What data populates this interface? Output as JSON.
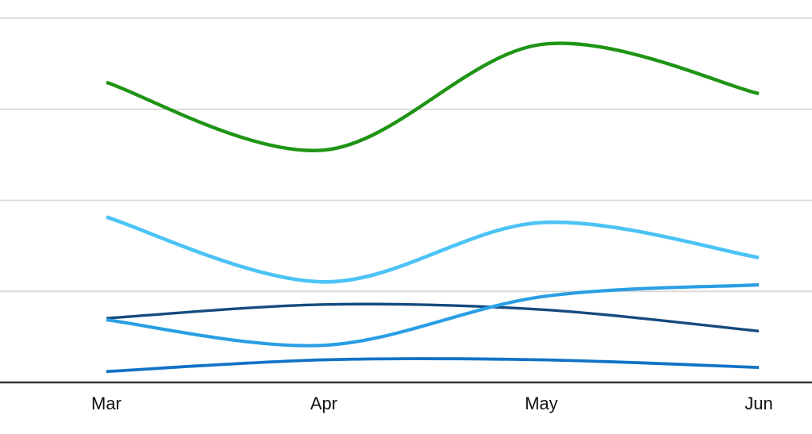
{
  "chart_data": {
    "type": "line",
    "title": "",
    "xlabel": "",
    "ylabel": "",
    "categories": [
      "Mar",
      "Apr",
      "May",
      "Jun"
    ],
    "series": [
      {
        "name": "green",
        "color": "#1e9414",
        "values": [
          82.4,
          63.8,
          92.8,
          79.3
        ]
      },
      {
        "name": "sky-blue",
        "color": "#4bc3f5",
        "values": [
          45.4,
          27.6,
          43.9,
          34.3
        ]
      },
      {
        "name": "dark-navy",
        "color": "#154b7e",
        "values": [
          17.6,
          21.4,
          20.0,
          14.1
        ]
      },
      {
        "name": "medium-blue",
        "color": "#2a9ee5",
        "values": [
          17.2,
          10.2,
          23.5,
          26.8
        ]
      },
      {
        "name": "strong-blue",
        "color": "#1173c6",
        "values": [
          3.0,
          6.2,
          6.2,
          4.1
        ]
      }
    ],
    "ylim": [
      0,
      100
    ],
    "y_gridline_values": [
      25,
      50,
      75,
      100
    ],
    "y_axis_labels_visible": false,
    "grid": true,
    "legend": false,
    "curve": "smooth-catmull-rom"
  },
  "colors": {
    "background": "#ffffff",
    "gridline": "#d8d8d8",
    "axis": "#333333",
    "tick_label": "#111111"
  }
}
